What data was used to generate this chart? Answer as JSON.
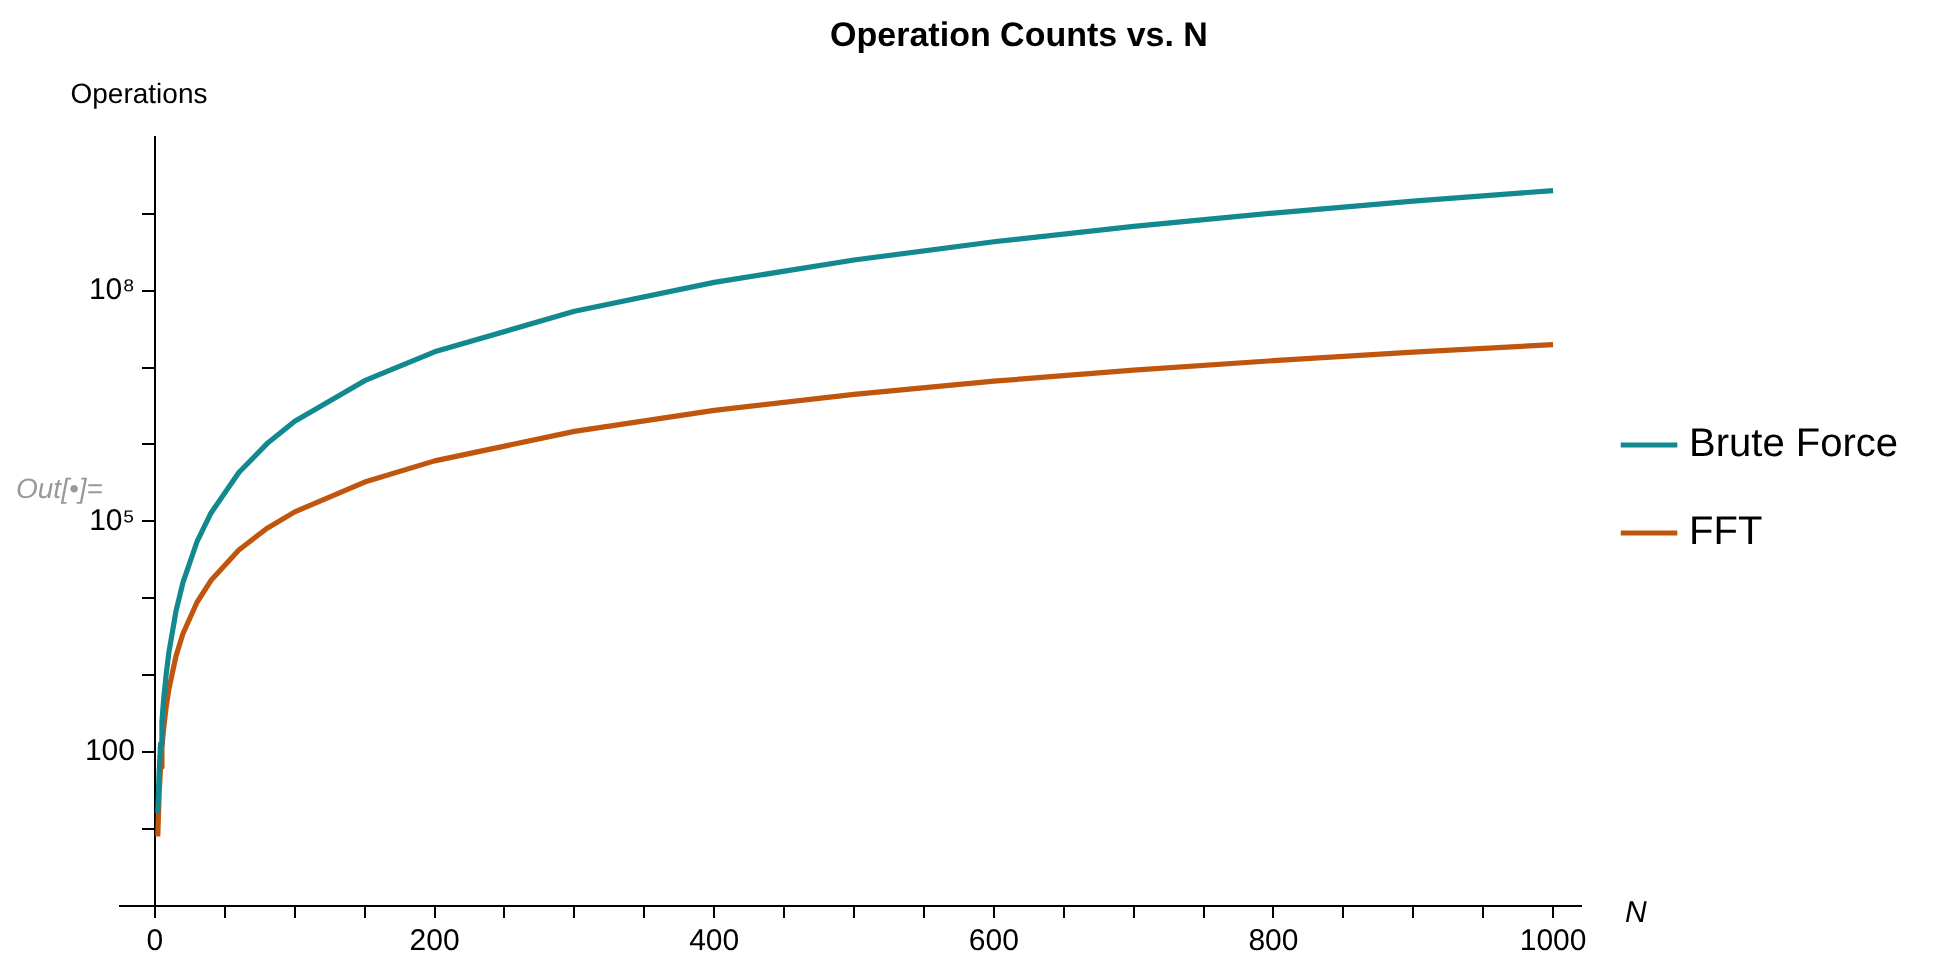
{
  "chart_data": {
    "type": "line",
    "title": "Operation Counts vs. N",
    "xlabel": "N",
    "ylabel": "Operations",
    "annotations": [
      "Out[•]="
    ],
    "x": [
      2,
      3,
      4,
      5,
      6,
      8,
      10,
      15,
      20,
      30,
      40,
      60,
      80,
      100,
      150,
      200,
      300,
      400,
      500,
      600,
      700,
      800,
      900,
      1000
    ],
    "series": [
      {
        "name": "Brute Force",
        "color": "#12898f",
        "values": [
          16,
          54,
          128,
          250,
          432,
          1020,
          2000,
          6750,
          16000,
          54000,
          128000,
          432000,
          1020000,
          2000000,
          6750000,
          16000000,
          54000000,
          128000000,
          250000000,
          432000000,
          686000000,
          1020000000,
          1460000000,
          2000000000
        ]
      },
      {
        "name": "FFT",
        "color": "#c0560e",
        "values": [
          8,
          28.5,
          64,
          116,
          186,
          384,
          664,
          1760,
          3460,
          8830,
          17000,
          42500,
          80900,
          133000,
          325000,
          612000,
          1480000,
          2770000,
          4480000,
          6650000,
          9260000,
          12300000,
          15900000,
          19900000
        ]
      }
    ],
    "log": "y",
    "xlim": [
      -25,
      1020
    ],
    "ylim": [
      1,
      10000000000
    ],
    "xticks": [
      0,
      {
        "value": 50,
        "label": null
      },
      {
        "value": 100,
        "label": null
      },
      {
        "value": 150,
        "label": null
      },
      200,
      {
        "value": 250,
        "label": null
      },
      {
        "value": 300,
        "label": null
      },
      {
        "value": 350,
        "label": null
      },
      400,
      {
        "value": 450,
        "label": null
      },
      {
        "value": 500,
        "label": null
      },
      {
        "value": 550,
        "label": null
      },
      600,
      {
        "value": 650,
        "label": null
      },
      {
        "value": 700,
        "label": null
      },
      {
        "value": 750,
        "label": null
      },
      800,
      {
        "value": 850,
        "label": null
      },
      {
        "value": 900,
        "label": null
      },
      {
        "value": 950,
        "label": null
      },
      1000
    ],
    "yticks": [
      {
        "value": 10,
        "label": null
      },
      100,
      {
        "value": 1000,
        "label": null
      },
      {
        "value": 10000,
        "label": null
      },
      {
        "value": 100000,
        "label": "10⁵"
      },
      {
        "value": 1000000,
        "label": null
      },
      {
        "value": 10000000,
        "label": null
      },
      {
        "value": 100000000,
        "label": "10⁸"
      },
      {
        "value": 1000000000,
        "label": null
      }
    ],
    "grid": false,
    "legend": "right",
    "marker": "none",
    "line_style": "solid"
  }
}
